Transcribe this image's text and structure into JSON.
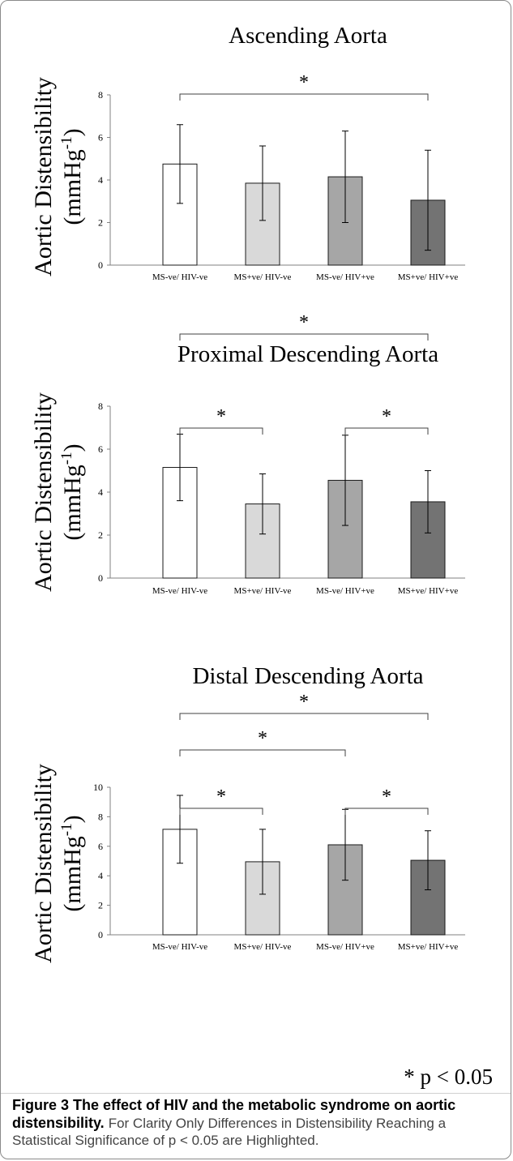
{
  "chart_data": [
    {
      "type": "bar",
      "title": "Ascending Aorta",
      "ylabel": "Aortic Distensibility (mmHg-1)",
      "ylim": [
        0,
        8
      ],
      "yticks": [
        0,
        2,
        4,
        6,
        8
      ],
      "categories": [
        "MS-ve/ HIV-ve",
        "MS+ve/ HIV-ve",
        "MS-ve/ HIV+ve",
        "MS+ve/ HIV+ve"
      ],
      "values": [
        4.75,
        3.85,
        4.15,
        3.05
      ],
      "errors": [
        1.85,
        1.75,
        2.15,
        2.35
      ],
      "bar_colors": [
        "#ffffff",
        "#d9d9d9",
        "#a6a6a6",
        "#737373"
      ],
      "significance": [
        {
          "from": 0,
          "to": 3,
          "label": "*"
        }
      ]
    },
    {
      "type": "bar",
      "title": "Proximal Descending Aorta",
      "ylabel": "Aortic Distensibility (mmHg-1)",
      "ylim": [
        0,
        8
      ],
      "yticks": [
        0,
        2,
        4,
        6,
        8
      ],
      "categories": [
        "MS-ve/ HIV-ve",
        "MS+ve/ HIV-ve",
        "MS-ve/ HIV+ve",
        "MS+ve/ HIV+ve"
      ],
      "values": [
        5.15,
        3.45,
        4.55,
        3.55
      ],
      "errors": [
        1.55,
        1.4,
        2.1,
        1.45
      ],
      "bar_colors": [
        "#ffffff",
        "#d9d9d9",
        "#a6a6a6",
        "#737373"
      ],
      "significance": [
        {
          "from": 0,
          "to": 3,
          "label": "*"
        },
        {
          "from": 0,
          "to": 1,
          "label": "*"
        },
        {
          "from": 2,
          "to": 3,
          "label": "*"
        }
      ]
    },
    {
      "type": "bar",
      "title": "Distal Descending Aorta",
      "ylabel": "Aortic Distensibility (mmHg-1)",
      "ylim": [
        0,
        10
      ],
      "yticks": [
        0,
        2,
        4,
        6,
        8,
        10
      ],
      "categories": [
        "MS-ve/ HIV-ve",
        "MS+ve/ HIV-ve",
        "MS-ve/ HIV+ve",
        "MS+ve/ HIV+ve"
      ],
      "values": [
        7.15,
        4.95,
        6.1,
        5.05
      ],
      "errors": [
        2.3,
        2.2,
        2.4,
        2.0
      ],
      "bar_colors": [
        "#ffffff",
        "#d9d9d9",
        "#a6a6a6",
        "#737373"
      ],
      "significance": [
        {
          "from": 0,
          "to": 3,
          "label": "*"
        },
        {
          "from": 0,
          "to": 2,
          "label": "*"
        },
        {
          "from": 0,
          "to": 1,
          "label": "*"
        },
        {
          "from": 2,
          "to": 3,
          "label": "*"
        }
      ]
    }
  ],
  "ylabel_main": "Aortic Distensibility",
  "ylabel_unit_base": "(mmHg",
  "ylabel_unit_sup": "-1",
  "ylabel_unit_close": ")",
  "footnote": "* p < 0.05",
  "caption": {
    "title": "Figure 3 The effect of HIV and the metabolic syndrome on aortic distensibility.",
    "body": "For Clarity Only Differences in Distensibility Reaching a Statistical Significance of p < 0.05 are Highlighted."
  }
}
